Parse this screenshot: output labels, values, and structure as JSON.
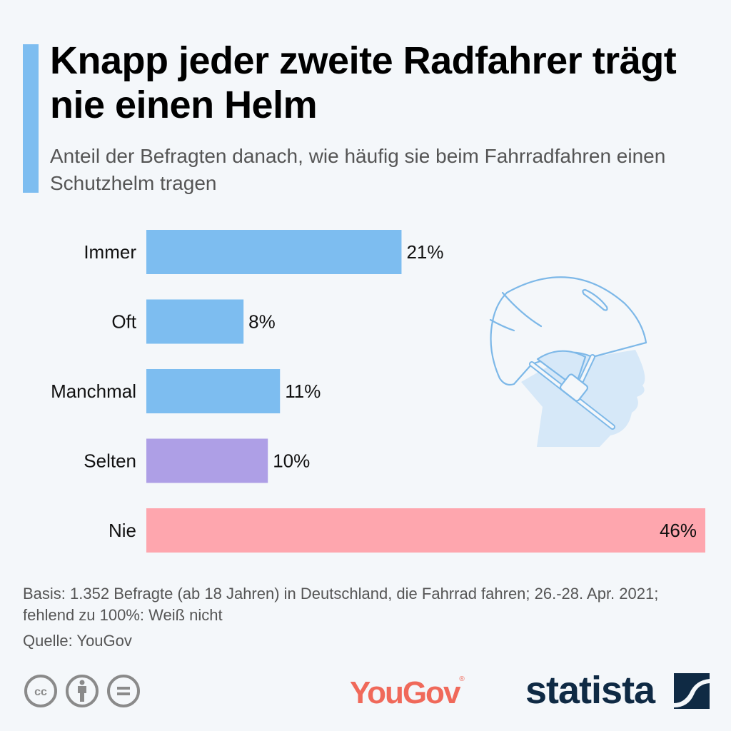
{
  "header": {
    "title": "Knapp jeder zweite Radfahrer trägt nie einen Helm",
    "subtitle": "Anteil der Befragten danach, wie häufig sie beim Fahrradfahren einen Schutzhelm tragen"
  },
  "chart_data": {
    "type": "bar",
    "orientation": "horizontal",
    "title": "Knapp jeder zweite Radfahrer trägt nie einen Helm",
    "subtitle": "Anteil der Befragten danach, wie häufig sie beim Fahrradfahren einen Schutzhelm tragen",
    "xlabel": "",
    "ylabel": "",
    "unit": "%",
    "categories": [
      "Immer",
      "Oft",
      "Manchmal",
      "Selten",
      "Nie"
    ],
    "values": [
      21,
      8,
      11,
      10,
      46
    ],
    "value_labels": [
      "21%",
      "8%",
      "11%",
      "10%",
      "46%"
    ],
    "colors": [
      "#7dbdf0",
      "#7dbdf0",
      "#7dbdf0",
      "#ae9fe6",
      "#fea6ae"
    ],
    "xlim": [
      0,
      46
    ],
    "grid": false,
    "legend": "none"
  },
  "illustration": {
    "icon": "bike-helmet-head-icon",
    "stroke_color": "#7db8e8",
    "fill_color": "#d6e8f8"
  },
  "notes": {
    "basis": "Basis: 1.352 Befragte (ab 18 Jahren) in Deutschland, die Fahrrad fahren; 26.-28. Apr. 2021; fehlend zu 100%: Weiß nicht",
    "source": "Quelle: YouGov"
  },
  "footer": {
    "license_icons": [
      "cc-icon",
      "attribution-icon",
      "no-derivatives-icon"
    ],
    "partner_logo": "YouGov",
    "partner_logo_mark": "®",
    "brand_logo": "statista",
    "partner_color": "#f0695a",
    "brand_color": "#0f2a44"
  }
}
